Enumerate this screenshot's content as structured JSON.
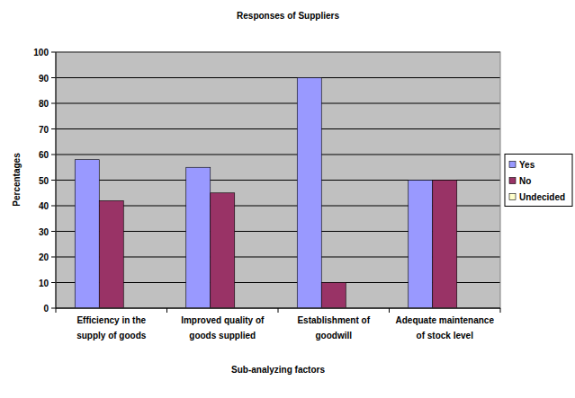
{
  "chart_data": {
    "type": "bar",
    "title": "Responses of Suppliers",
    "x_label": "Sub-analyzing factors",
    "y_label": "Percentages",
    "categories": [
      "Efficiency in the supply of goods",
      "Improved quality of goods supplied",
      "Establishment of goodwill",
      "Adequate maintenance of stock level"
    ],
    "series": [
      {
        "name": "Yes",
        "color": "#9999ff",
        "values": [
          58,
          55,
          90,
          50
        ]
      },
      {
        "name": "No",
        "color": "#993366",
        "values": [
          42,
          45,
          10,
          50
        ]
      },
      {
        "name": "Undecided",
        "color": "#ffffcc",
        "values": [
          0,
          0,
          0,
          0
        ]
      }
    ],
    "ylim": [
      0,
      100
    ],
    "yticks": [
      0,
      10,
      20,
      30,
      40,
      50,
      60,
      70,
      80,
      90,
      100
    ],
    "grid": true,
    "legend": "right"
  }
}
